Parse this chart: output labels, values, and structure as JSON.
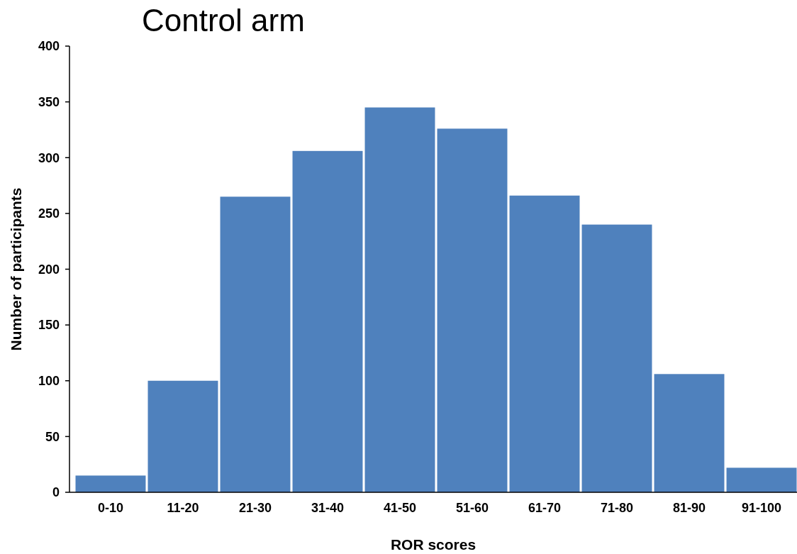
{
  "chart_data": {
    "type": "bar",
    "title": "Control arm",
    "xlabel": "ROR scores",
    "ylabel": "Number of participants",
    "categories": [
      "0-10",
      "11-20",
      "21-30",
      "31-40",
      "41-50",
      "51-60",
      "61-70",
      "71-80",
      "81-90",
      "91-100"
    ],
    "values": [
      15,
      100,
      265,
      306,
      345,
      326,
      266,
      240,
      106,
      22
    ],
    "color": "#4f81bd",
    "ylim": [
      0,
      400
    ],
    "yticks": [
      0,
      50,
      100,
      150,
      200,
      250,
      300,
      350,
      400
    ],
    "grid": false
  }
}
